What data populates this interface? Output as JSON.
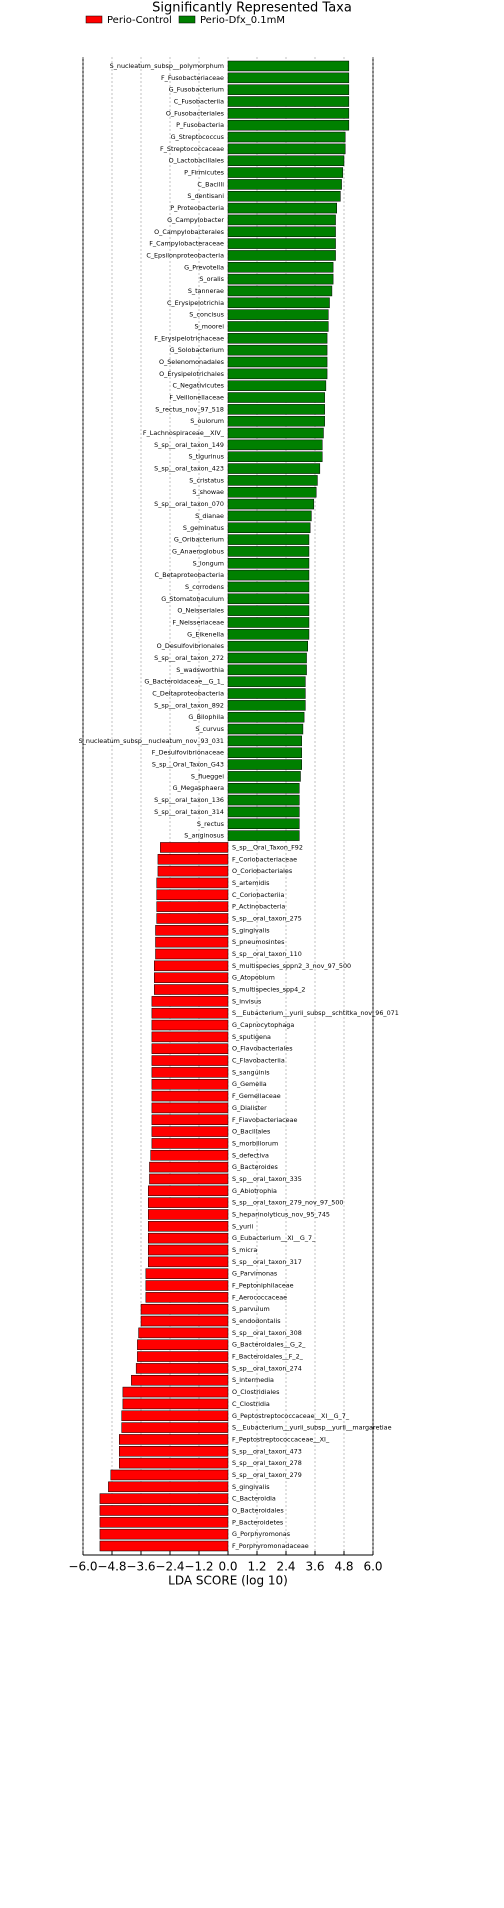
{
  "chart_data": {
    "type": "bar",
    "orientation": "horizontal",
    "title": "Significantly Represented Taxa",
    "xlabel": "LDA SCORE (log 10)",
    "xlim": [
      -6.0,
      6.0
    ],
    "xticks": [
      {
        "value": -6.0,
        "label": "−6.0"
      },
      {
        "value": -4.8,
        "label": "−4.8"
      },
      {
        "value": -3.6,
        "label": "−3.6"
      },
      {
        "value": -2.4,
        "label": "−2.4"
      },
      {
        "value": -1.2,
        "label": "−1.2"
      },
      {
        "value": 0.0,
        "label": "0.0"
      },
      {
        "value": 1.2,
        "label": "1.2"
      },
      {
        "value": 2.4,
        "label": "2.4"
      },
      {
        "value": 3.6,
        "label": "3.6"
      },
      {
        "value": 4.8,
        "label": "4.8"
      },
      {
        "value": 6.0,
        "label": "6.0"
      }
    ],
    "grid": true,
    "series": [
      {
        "name": "Perio-Dfx_0.1mM",
        "color": "#008000",
        "legend_order": 1,
        "categories": [
          "S_nucleatum_subsp__polymorphum",
          "F_Fusobacteriaceae",
          "G_Fusobacterium",
          "C_Fusobacteriia",
          "O_Fusobacteriales",
          "P_Fusobacteria",
          "G_Streptococcus",
          "F_Streptococcaceae",
          "O_Lactobacillales",
          "P_Firmicutes",
          "C_Bacilli",
          "S_dentisani",
          "P_Proteobacteria",
          "G_Campylobacter",
          "O_Campylobacterales",
          "F_Campylobacteraceae",
          "C_Epsilonproteobacteria",
          "G_Prevotella",
          "S_oralis",
          "S_tannerae",
          "C_Erysipelotrichia",
          "S_concisus",
          "S_moorei",
          "F_Erysipelotrichaceae",
          "G_Solobacterium",
          "O_Selenomonadales",
          "O_Erysipelotrichales",
          "C_Negativicutes",
          "F_Veillonellaceae",
          "S_rectus_nov_97_518",
          "S_oulorum",
          "F_Lachnospiraceae__XIV_",
          "S_sp__oral_taxon_149",
          "S_tigurinus",
          "S_sp__oral_taxon_423",
          "S_cristatus",
          "S_showae",
          "S_sp__oral_taxon_070",
          "S_dianae",
          "S_geminatus",
          "G_Oribacterium",
          "G_Anaeroglobus",
          "S_longum",
          "C_Betaproteobacteria",
          "S_corrodens",
          "G_Stomatobaculum",
          "O_Neisseriales",
          "F_Neisseriaceae",
          "G_Eikenella",
          "O_Desulfovibrionales",
          "S_sp__oral_taxon_272",
          "S_wadsworthia",
          "G_Bacteroidaceae__G_1_",
          "C_Deltaproteobacteria",
          "S_sp__oral_taxon_892",
          "G_Bilophila",
          "S_curvus",
          "S_nucleatum_subsp__nucleatum_nov_93_031",
          "F_Desulfovibrionaceae",
          "S_sp__Oral_Taxon_G43",
          "S_flueggei",
          "G_Megasphaera",
          "S_sp__oral_taxon_136",
          "S_sp__oral_taxon_314",
          "S_rectus",
          "S_anginosus"
        ],
        "values": [
          5.0,
          5.0,
          5.0,
          5.0,
          5.0,
          5.0,
          4.85,
          4.85,
          4.8,
          4.75,
          4.7,
          4.65,
          4.5,
          4.45,
          4.45,
          4.45,
          4.45,
          4.35,
          4.35,
          4.3,
          4.2,
          4.15,
          4.15,
          4.1,
          4.1,
          4.1,
          4.1,
          4.05,
          4.0,
          4.0,
          4.0,
          3.95,
          3.9,
          3.9,
          3.8,
          3.7,
          3.65,
          3.55,
          3.45,
          3.4,
          3.35,
          3.35,
          3.35,
          3.35,
          3.35,
          3.35,
          3.35,
          3.35,
          3.35,
          3.3,
          3.25,
          3.25,
          3.2,
          3.2,
          3.2,
          3.15,
          3.1,
          3.05,
          3.05,
          3.05,
          3.0,
          2.95,
          2.95,
          2.95,
          2.95,
          2.95
        ]
      },
      {
        "name": "Perio-Control",
        "color": "#ff0000",
        "legend_order": 0,
        "categories": [
          "S_sp__Oral_Taxon_F92",
          "F_Coriobacteriaceae",
          "O_Coriobacteriales",
          "S_artemidis",
          "C_Coriobacteriia",
          "P_Actinobacteria",
          "S_sp__oral_taxon_275",
          "S_gingivalis",
          "S_pneumosintes",
          "S_sp__oral_taxon_110",
          "S_multispecies_sppn2_3_nov_97_500",
          "G_Atopobium",
          "S_multispecies_spp4_2",
          "S_invisus",
          "S__Eubacterium__yurii_subsp__schtitka_nov_96_071",
          "G_Capnocytophaga",
          "S_sputigena",
          "O_Flavobacteriales",
          "C_Flavobacteriia",
          "S_sanguinis",
          "G_Gemella",
          "F_Gemellaceae",
          "G_Dialister",
          "F_Flavobacteriaceae",
          "O_Bacillales",
          "S_morbillorum",
          "S_defectiva",
          "G_Bacteroides",
          "S_sp__oral_taxon_335",
          "G_Abiotrophia",
          "S_sp__oral_taxon_279_nov_97_500",
          "S_heparinolyticus_nov_95_745",
          "S_yurii",
          "G_Eubacterium__XI__G_7_",
          "S_micra",
          "S_sp__oral_taxon_317",
          "G_Parvimonas",
          "F_Peptoniphilaceae",
          "F_Aerococcaceae",
          "S_parvulum",
          "S_endodontalis",
          "S_sp__oral_taxon_308",
          "G_Bacteroidales__G_2_",
          "F_Bacteroidales__F_2_",
          "S_sp__oral_taxon_274",
          "S_intermedia",
          "O_Clostridiales",
          "C_Clostridia",
          "G_Peptostreptococcaceae__XI__G_7_",
          "S__Eubacterium__yurii_subsp__yurii__margaretiae",
          "F_Peptostreptococcaceae__XI_",
          "S_sp__oral_taxon_473",
          "S_sp__oral_taxon_278",
          "S_sp__oral_taxon_279",
          "S_gingivalis",
          "C_Bacteroidia",
          "O_Bacteroidales",
          "P_Bacteroidetes",
          "G_Porphyromonas",
          "F_Porphyromonadaceae"
        ],
        "values": [
          -2.8,
          -2.9,
          -2.9,
          -2.95,
          -2.95,
          -2.95,
          -2.95,
          -3.0,
          -3.0,
          -3.0,
          -3.05,
          -3.05,
          -3.05,
          -3.15,
          -3.15,
          -3.15,
          -3.15,
          -3.15,
          -3.15,
          -3.15,
          -3.15,
          -3.15,
          -3.15,
          -3.15,
          -3.15,
          -3.15,
          -3.2,
          -3.25,
          -3.25,
          -3.3,
          -3.3,
          -3.3,
          -3.3,
          -3.3,
          -3.3,
          -3.3,
          -3.4,
          -3.4,
          -3.4,
          -3.6,
          -3.6,
          -3.7,
          -3.75,
          -3.75,
          -3.8,
          -4.0,
          -4.35,
          -4.35,
          -4.4,
          -4.4,
          -4.5,
          -4.5,
          -4.5,
          -4.85,
          -4.95,
          -5.3,
          -5.3,
          -5.3,
          -5.3,
          -5.3
        ]
      }
    ]
  }
}
